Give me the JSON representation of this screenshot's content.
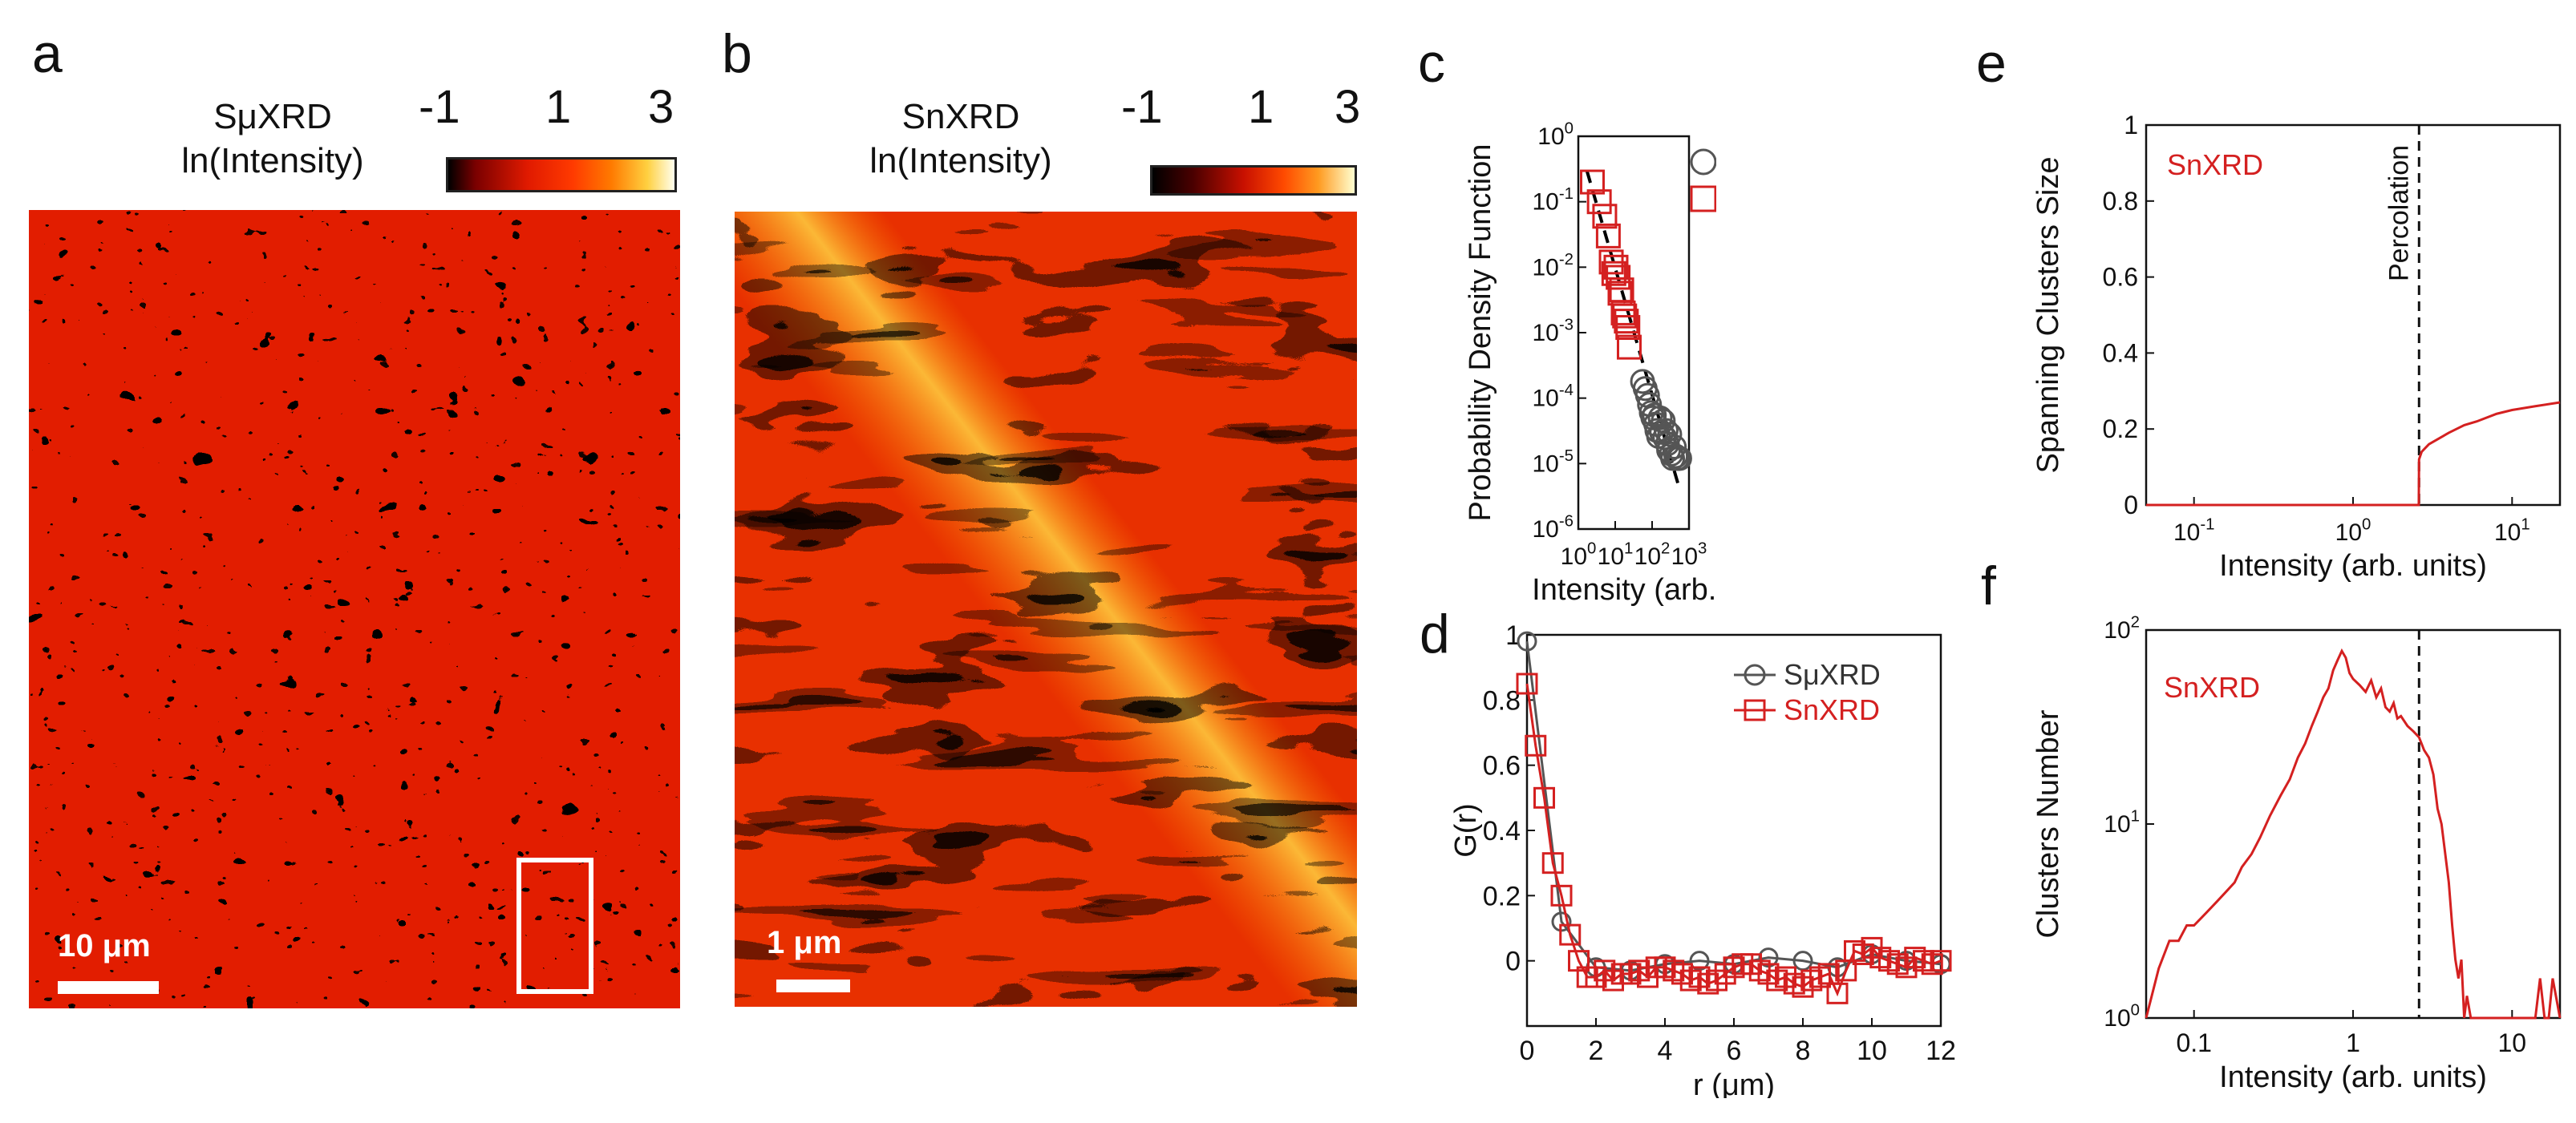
{
  "panels": {
    "a": {
      "letter": "a",
      "title_line1": "SμXRD",
      "title_line2": "ln(Intensity)",
      "cb_ticks": [
        "-1",
        "1",
        "3"
      ],
      "scalebar": "10 μm"
    },
    "b": {
      "letter": "b",
      "title_line1": "SnXRD",
      "title_line2": "ln(Intensity)",
      "cb_ticks": [
        "-1",
        "1",
        "3"
      ],
      "scalebar": "1 μm"
    },
    "c": {
      "letter": "c"
    },
    "d": {
      "letter": "d"
    },
    "e": {
      "letter": "e"
    },
    "f": {
      "letter": "f"
    }
  },
  "colors": {
    "black_red": "#000000",
    "red": "#e01a00",
    "orange": "#ff6a00",
    "yellow": "#ffe066",
    "white": "#ffffee",
    "series_red": "#d42020",
    "series_gray": "#555555"
  },
  "chart_data": [
    {
      "id": "c",
      "type": "scatter",
      "xlabel": "Intensity (arb. units)",
      "ylabel": "Probability Density Function",
      "xscale": "log",
      "yscale": "log",
      "xlim": [
        1,
        1000
      ],
      "ylim": [
        1e-06,
        1
      ],
      "xticks": [
        {
          "v": 1,
          "base": "10",
          "exp": "0"
        },
        {
          "v": 10,
          "base": "10",
          "exp": "1"
        },
        {
          "v": 100,
          "base": "10",
          "exp": "2"
        },
        {
          "v": 1000,
          "base": "10",
          "exp": "3"
        }
      ],
      "yticks": [
        {
          "v": 1e-06,
          "base": "10",
          "exp": "-6"
        },
        {
          "v": 1e-05,
          "base": "10",
          "exp": "-5"
        },
        {
          "v": 0.0001,
          "base": "10",
          "exp": "-4"
        },
        {
          "v": 0.001,
          "base": "10",
          "exp": "-3"
        },
        {
          "v": 0.01,
          "base": "10",
          "exp": "-2"
        },
        {
          "v": 0.1,
          "base": "10",
          "exp": "-1"
        },
        {
          "v": 1,
          "base": "10",
          "exp": "0"
        }
      ],
      "legend": "top-right",
      "series": [
        {
          "name": "SμXRD",
          "marker": "circle",
          "color": "#555555",
          "x": [
            55,
            65,
            75,
            85,
            95,
            105,
            115,
            125,
            135,
            150,
            165,
            180,
            200,
            220,
            240,
            260,
            280,
            300,
            330,
            360,
            400,
            440,
            480,
            520,
            560
          ],
          "y": [
            0.00018,
            0.00014,
            0.00011,
            8e-05,
            6e-05,
            5e-05,
            5.5e-05,
            4e-05,
            3.2e-05,
            2.6e-05,
            5e-05,
            3e-05,
            4.5e-05,
            2.5e-05,
            3.2e-05,
            2e-05,
            1.6e-05,
            2.8e-05,
            1.4e-05,
            1.2e-05,
            1.8e-05,
            1.3e-05,
            1.2e-05,
            1.2e-05,
            1.2e-05
          ]
        },
        {
          "name": "SnXRD",
          "marker": "square",
          "color": "#d42020",
          "x": [
            2.4,
            3.7,
            5.2,
            6.5,
            7.8,
            9.2,
            10.5,
            12,
            13.5,
            15,
            16.5,
            18,
            20,
            22,
            24
          ],
          "y": [
            0.2,
            0.1,
            0.06,
            0.03,
            0.012,
            0.008,
            0.01,
            0.007,
            0.004,
            0.0045,
            0.002,
            0.0018,
            0.0015,
            0.0012,
            0.0006
          ]
        }
      ],
      "fit": {
        "style": "dashed",
        "color": "#000000",
        "x": [
          1.7,
          500
        ],
        "y": [
          0.3,
          5e-06
        ]
      }
    },
    {
      "id": "d",
      "type": "line",
      "xlabel": "r (μm)",
      "ylabel": "G(r)",
      "xlim": [
        0,
        12
      ],
      "ylim": [
        -0.2,
        1
      ],
      "xticks": [
        0,
        2,
        4,
        6,
        8,
        10,
        12
      ],
      "yticks": [
        0,
        0.2,
        0.4,
        0.6,
        0.8,
        1
      ],
      "ytick_labels": [
        "0",
        "0.2",
        "0.4",
        "0.6",
        "0.8",
        "1"
      ],
      "legend": "top-right",
      "series": [
        {
          "name": "SμXRD",
          "marker": "circle",
          "color": "#555555",
          "x": [
            0,
            1,
            2,
            3,
            4,
            5,
            6,
            7,
            8,
            9,
            10,
            11,
            12
          ],
          "y": [
            0.98,
            0.12,
            -0.02,
            -0.03,
            -0.01,
            0.0,
            -0.01,
            0.01,
            0.0,
            -0.02,
            0.02,
            0.0,
            -0.01
          ]
        },
        {
          "name": "SnXRD",
          "marker": "square",
          "color": "#d42020",
          "x": [
            0,
            0.25,
            0.5,
            0.75,
            1,
            1.25,
            1.5,
            1.75,
            2,
            2.25,
            2.5,
            2.75,
            3,
            3.25,
            3.5,
            3.75,
            4,
            4.25,
            4.5,
            4.75,
            5,
            5.25,
            5.5,
            5.75,
            6,
            6.25,
            6.5,
            6.75,
            7,
            7.25,
            7.5,
            7.75,
            8,
            8.25,
            8.5,
            8.75,
            9,
            9.25,
            9.5,
            9.75,
            10,
            10.25,
            10.5,
            10.75,
            11,
            11.25,
            11.5,
            11.75,
            12
          ],
          "y": [
            0.85,
            0.66,
            0.5,
            0.3,
            0.2,
            0.08,
            0.0,
            -0.05,
            -0.05,
            -0.03,
            -0.06,
            -0.04,
            -0.04,
            -0.03,
            -0.05,
            -0.02,
            -0.02,
            -0.03,
            -0.04,
            -0.06,
            -0.05,
            -0.07,
            -0.06,
            -0.04,
            -0.02,
            -0.01,
            -0.01,
            -0.03,
            -0.04,
            -0.06,
            -0.05,
            -0.07,
            -0.08,
            -0.06,
            -0.05,
            -0.04,
            -0.1,
            -0.03,
            0.03,
            0.02,
            0.04,
            0.01,
            0.0,
            -0.01,
            -0.02,
            0.01,
            0.0,
            -0.01,
            0.0
          ]
        }
      ]
    },
    {
      "id": "e",
      "type": "line",
      "xlabel": "Intensity (arb. units)",
      "ylabel": "Spanning Clusters Size",
      "xscale": "log",
      "xlim": [
        0.05,
        20
      ],
      "ylim": [
        0,
        1
      ],
      "xticks": [
        {
          "v": 0.1,
          "base": "10",
          "exp": "-1"
        },
        {
          "v": 1,
          "base": "10",
          "exp": "0"
        },
        {
          "v": 10,
          "base": "10",
          "exp": "1"
        }
      ],
      "yticks": [
        0,
        0.2,
        0.4,
        0.6,
        0.8,
        1
      ],
      "ytick_labels": [
        "0",
        "0.2",
        "0.4",
        "0.6",
        "0.8",
        "1"
      ],
      "label": "SnXRD",
      "vline": {
        "x": 2.6,
        "label": "Percolation"
      },
      "series": [
        {
          "name": "SnXRD",
          "color": "#d42020",
          "x": [
            0.05,
            0.5,
            1,
            2,
            2.59,
            2.6,
            2.7,
            3,
            4,
            5,
            6,
            8,
            10,
            14,
            20
          ],
          "y": [
            0,
            0,
            0,
            0,
            0,
            0.12,
            0.14,
            0.16,
            0.19,
            0.21,
            0.22,
            0.24,
            0.25,
            0.26,
            0.27
          ]
        }
      ]
    },
    {
      "id": "f",
      "type": "line",
      "xlabel": "Intensity (arb. units)",
      "ylabel": "Clusters Number",
      "xscale": "log",
      "yscale": "log",
      "xlim": [
        0.05,
        20
      ],
      "ylim": [
        1,
        100
      ],
      "xticks": [
        {
          "v": 0.1,
          "label": "0.1"
        },
        {
          "v": 1,
          "label": "1"
        },
        {
          "v": 10,
          "label": "10"
        }
      ],
      "yticks": [
        {
          "v": 1,
          "base": "10",
          "exp": "0"
        },
        {
          "v": 10,
          "base": "10",
          "exp": "1"
        },
        {
          "v": 100,
          "base": "10",
          "exp": "2"
        }
      ],
      "label": "SnXRD",
      "vline": {
        "x": 2.6
      },
      "series": [
        {
          "name": "SnXRD",
          "color": "#d42020",
          "x": [
            0.05,
            0.06,
            0.07,
            0.08,
            0.09,
            0.1,
            0.12,
            0.14,
            0.16,
            0.18,
            0.2,
            0.23,
            0.26,
            0.3,
            0.35,
            0.4,
            0.45,
            0.5,
            0.55,
            0.6,
            0.65,
            0.7,
            0.75,
            0.8,
            0.85,
            0.9,
            0.95,
            1.0,
            1.1,
            1.2,
            1.3,
            1.4,
            1.5,
            1.6,
            1.7,
            1.8,
            1.9,
            2.0,
            2.2,
            2.4,
            2.6,
            2.8,
            3.0,
            3.2,
            3.4,
            3.6,
            3.8,
            4.0,
            4.2,
            4.4,
            4.6,
            4.8,
            5.0,
            5.2,
            5.5,
            6,
            7,
            8,
            9,
            10,
            11,
            12,
            13,
            14,
            15,
            16,
            17,
            18,
            20
          ],
          "y": [
            1,
            1.8,
            2.5,
            2.5,
            3,
            3,
            3.5,
            4,
            4.5,
            5,
            6,
            7,
            8.5,
            11,
            14,
            17,
            22,
            26,
            32,
            38,
            45,
            50,
            62,
            70,
            78,
            72,
            60,
            56,
            52,
            48,
            55,
            45,
            50,
            40,
            38,
            42,
            35,
            36,
            32,
            30,
            28,
            24,
            22,
            18,
            12,
            10,
            7,
            5,
            3,
            2,
            1.6,
            2,
            1,
            1.3,
            1,
            1,
            1,
            1,
            1,
            1,
            1,
            1,
            1,
            1,
            1.6,
            1,
            1,
            1.6,
            1
          ]
        }
      ]
    }
  ]
}
